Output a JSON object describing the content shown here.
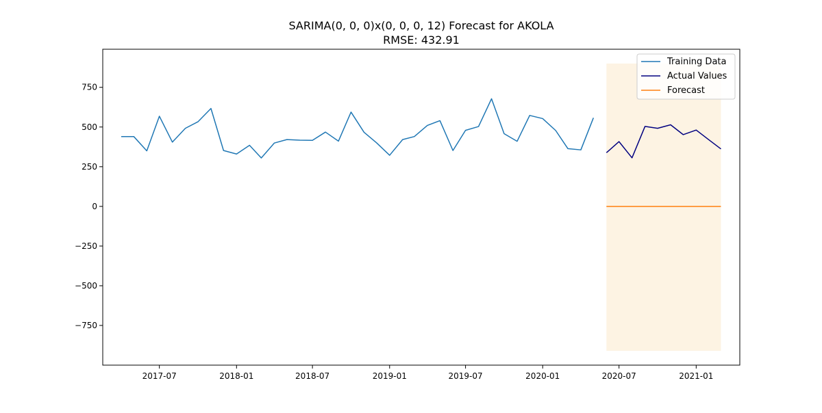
{
  "chart_data": {
    "type": "line",
    "title": "SARIMA(0, 0, 0)x(0, 0, 0, 12) Forecast for AKOLA",
    "subtitle": "RMSE: 432.91",
    "xlabel": "",
    "ylabel": "",
    "x_ticks": [
      "2017-07",
      "2018-01",
      "2018-07",
      "2019-01",
      "2019-07",
      "2020-01",
      "2020-07",
      "2021-01"
    ],
    "y_ticks": [
      750,
      500,
      250,
      0,
      -250,
      -500,
      -750
    ],
    "xlim": [
      "2017-02-16",
      "2021-04-15"
    ],
    "ylim": [
      -1000,
      990
    ],
    "grid": false,
    "legend_position": "top-right",
    "series": [
      {
        "name": "Training Data",
        "color": "#1f77b4",
        "x": [
          "2017-04-01",
          "2017-05-01",
          "2017-06-01",
          "2017-07-01",
          "2017-08-01",
          "2017-09-01",
          "2017-10-01",
          "2017-11-01",
          "2017-12-01",
          "2018-01-01",
          "2018-02-01",
          "2018-03-01",
          "2018-04-01",
          "2018-05-01",
          "2018-06-01",
          "2018-07-01",
          "2018-08-01",
          "2018-09-01",
          "2018-10-01",
          "2018-11-01",
          "2018-12-01",
          "2019-01-01",
          "2019-02-01",
          "2019-03-01",
          "2019-04-01",
          "2019-05-01",
          "2019-06-01",
          "2019-07-01",
          "2019-08-01",
          "2019-09-01",
          "2019-10-01",
          "2019-11-01",
          "2019-12-01",
          "2020-01-01",
          "2020-02-01",
          "2020-03-01",
          "2020-04-01",
          "2020-05-01"
        ],
        "values": [
          440,
          440,
          350,
          568,
          405,
          492,
          533,
          617,
          352,
          330,
          385,
          305,
          399,
          421,
          417,
          416,
          468,
          411,
          594,
          467,
          400,
          322,
          421,
          440,
          510,
          540,
          352,
          479,
          503,
          678,
          458,
          410,
          573,
          553,
          478,
          364,
          356,
          558
        ]
      },
      {
        "name": "Actual Values",
        "color": "#000080",
        "x": [
          "2020-06-01",
          "2020-07-01",
          "2020-08-01",
          "2020-09-01",
          "2020-10-01",
          "2020-11-01",
          "2020-12-01",
          "2021-01-01",
          "2021-02-01",
          "2021-03-01"
        ],
        "values": [
          338,
          408,
          306,
          504,
          492,
          514,
          452,
          481,
          418,
          362
        ]
      },
      {
        "name": "Forecast",
        "color": "#ff7f0e",
        "x": [
          "2020-06-01",
          "2020-07-01",
          "2020-08-01",
          "2020-09-01",
          "2020-10-01",
          "2020-11-01",
          "2020-12-01",
          "2021-01-01",
          "2021-02-01",
          "2021-03-01"
        ],
        "values": [
          0,
          0,
          0,
          0,
          0,
          0,
          0,
          0,
          0,
          0
        ]
      }
    ],
    "confidence_band": {
      "color": "#fdf3e3",
      "x": [
        "2020-06-01",
        "2021-03-01"
      ],
      "lower": -910,
      "upper": 900
    }
  }
}
